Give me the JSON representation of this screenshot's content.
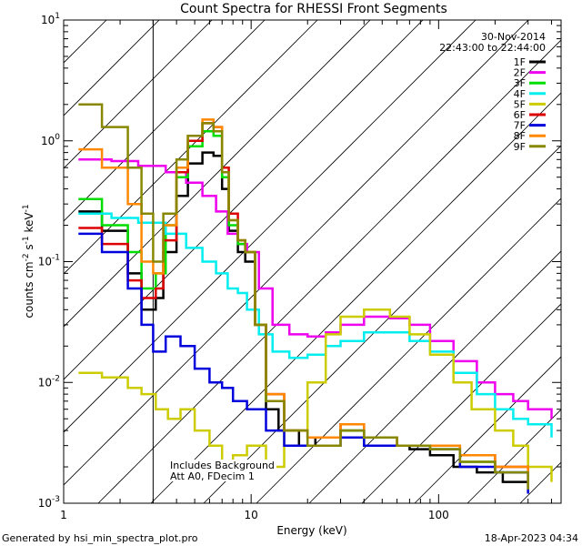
{
  "chart_data": {
    "type": "line",
    "title": "Count Spectra for RHESSI Front Segments",
    "xlabel": "Energy (keV)",
    "ylabel_parts": {
      "base": "counts cm",
      "e1": "-2",
      "mid": " s",
      "e2": "-1",
      "end": " keV",
      "e3": "-1"
    },
    "x_scale": "log",
    "y_scale": "log",
    "xlim": [
      1,
      450
    ],
    "ylim": [
      0.001,
      10
    ],
    "x_ticks": [
      {
        "v": 1,
        "label": "1"
      },
      {
        "v": 10,
        "label": "10"
      },
      {
        "v": 100,
        "label": "100"
      }
    ],
    "y_ticks": [
      {
        "v": 0.001,
        "base": "10",
        "exp": "-3"
      },
      {
        "v": 0.01,
        "base": "10",
        "exp": "-2"
      },
      {
        "v": 0.1,
        "base": "10",
        "exp": "-1"
      },
      {
        "v": 1,
        "base": "10",
        "exp": "0"
      },
      {
        "v": 10,
        "base": "10",
        "exp": "1"
      }
    ],
    "date": "30-Nov-2014",
    "time_range": "22:43:00 to 22:44:00",
    "excluded_below_keV": 3,
    "annotation_lines": [
      "Includes Background",
      "Att A0, FDecim 1"
    ],
    "legend_placement": "top-right",
    "series": [
      {
        "name": "1F",
        "color": "#000000",
        "points": [
          [
            1.2,
            0.26
          ],
          [
            1.6,
            0.18
          ],
          [
            2.2,
            0.08
          ],
          [
            2.6,
            0.04
          ],
          [
            3.1,
            0.05
          ],
          [
            3.4,
            0.12
          ],
          [
            4.0,
            0.35
          ],
          [
            4.6,
            0.65
          ],
          [
            5.5,
            0.8
          ],
          [
            6.3,
            0.75
          ],
          [
            7.0,
            0.4
          ],
          [
            7.6,
            0.18
          ],
          [
            8.5,
            0.12
          ],
          [
            9.3,
            0.1
          ],
          [
            10.5,
            0.03
          ],
          [
            12,
            0.006
          ],
          [
            14,
            0.004
          ],
          [
            18,
            0.003
          ],
          [
            22,
            0.0035
          ],
          [
            30,
            0.004
          ],
          [
            40,
            0.003
          ],
          [
            55,
            0.003
          ],
          [
            70,
            0.0028
          ],
          [
            90,
            0.0025
          ],
          [
            120,
            0.002
          ],
          [
            160,
            0.0018
          ],
          [
            220,
            0.0015
          ],
          [
            300,
            0.0012
          ]
        ]
      },
      {
        "name": "2F",
        "color": "#ee00ee",
        "points": [
          [
            1.2,
            0.7
          ],
          [
            1.8,
            0.68
          ],
          [
            2.5,
            0.62
          ],
          [
            3.5,
            0.55
          ],
          [
            4.5,
            0.45
          ],
          [
            5.5,
            0.35
          ],
          [
            6.5,
            0.26
          ],
          [
            7.5,
            0.17
          ],
          [
            8.5,
            0.14
          ],
          [
            9.5,
            0.12
          ],
          [
            11,
            0.06
          ],
          [
            13,
            0.03
          ],
          [
            16,
            0.025
          ],
          [
            20,
            0.024
          ],
          [
            25,
            0.026
          ],
          [
            30,
            0.03
          ],
          [
            40,
            0.035
          ],
          [
            55,
            0.034
          ],
          [
            70,
            0.03
          ],
          [
            90,
            0.022
          ],
          [
            120,
            0.015
          ],
          [
            160,
            0.01
          ],
          [
            200,
            0.008
          ],
          [
            250,
            0.007
          ],
          [
            300,
            0.006
          ],
          [
            400,
            0.005
          ]
        ]
      },
      {
        "name": "3F",
        "color": "#00dd00",
        "points": [
          [
            1.2,
            0.33
          ],
          [
            1.6,
            0.2
          ],
          [
            2.2,
            0.12
          ],
          [
            2.6,
            0.06
          ],
          [
            3.1,
            0.08
          ],
          [
            3.5,
            0.2
          ],
          [
            4.0,
            0.5
          ],
          [
            4.6,
            0.9
          ],
          [
            5.5,
            1.2
          ],
          [
            6.3,
            1.1
          ],
          [
            7.0,
            0.5
          ],
          [
            7.6,
            0.2
          ],
          [
            8.5,
            0.14
          ],
          [
            9.3,
            0.12
          ],
          [
            10.5,
            0.03
          ],
          [
            12,
            0.007
          ],
          [
            15,
            0.004
          ],
          [
            20,
            0.0035
          ],
          [
            30,
            0.004
          ],
          [
            40,
            0.003
          ],
          [
            60,
            0.003
          ],
          [
            90,
            0.0028
          ],
          [
            130,
            0.0022
          ],
          [
            200,
            0.0018
          ],
          [
            300,
            0.0013
          ]
        ]
      },
      {
        "name": "4F",
        "color": "#00eeee",
        "points": [
          [
            1.2,
            0.25
          ],
          [
            1.8,
            0.23
          ],
          [
            2.5,
            0.21
          ],
          [
            3.5,
            0.17
          ],
          [
            4.5,
            0.13
          ],
          [
            5.5,
            0.1
          ],
          [
            6.5,
            0.08
          ],
          [
            7.5,
            0.06
          ],
          [
            8.5,
            0.055
          ],
          [
            9.5,
            0.04
          ],
          [
            11,
            0.025
          ],
          [
            13,
            0.018
          ],
          [
            16,
            0.016
          ],
          [
            20,
            0.017
          ],
          [
            25,
            0.02
          ],
          [
            30,
            0.022
          ],
          [
            40,
            0.026
          ],
          [
            55,
            0.026
          ],
          [
            70,
            0.022
          ],
          [
            90,
            0.018
          ],
          [
            120,
            0.012
          ],
          [
            160,
            0.008
          ],
          [
            200,
            0.006
          ],
          [
            250,
            0.005
          ],
          [
            300,
            0.0045
          ],
          [
            400,
            0.0035
          ]
        ]
      },
      {
        "name": "5F",
        "color": "#cccc00",
        "points": [
          [
            1.2,
            0.012
          ],
          [
            1.6,
            0.011
          ],
          [
            2.2,
            0.009
          ],
          [
            2.6,
            0.008
          ],
          [
            3.1,
            0.006
          ],
          [
            3.6,
            0.005
          ],
          [
            4.2,
            0.006
          ],
          [
            5,
            0.004
          ],
          [
            6,
            0.003
          ],
          [
            7,
            0.002
          ],
          [
            8,
            0.0025
          ],
          [
            9.5,
            0.003
          ],
          [
            12,
            0.002
          ],
          [
            15,
            0.004
          ],
          [
            20,
            0.01
          ],
          [
            25,
            0.025
          ],
          [
            30,
            0.035
          ],
          [
            40,
            0.04
          ],
          [
            55,
            0.035
          ],
          [
            70,
            0.025
          ],
          [
            90,
            0.017
          ],
          [
            120,
            0.01
          ],
          [
            150,
            0.006
          ],
          [
            200,
            0.004
          ],
          [
            250,
            0.003
          ],
          [
            300,
            0.002
          ],
          [
            400,
            0.0015
          ]
        ]
      },
      {
        "name": "6F",
        "color": "#dd0000",
        "points": [
          [
            1.2,
            0.19
          ],
          [
            1.6,
            0.14
          ],
          [
            2.2,
            0.07
          ],
          [
            2.6,
            0.05
          ],
          [
            3.1,
            0.06
          ],
          [
            3.4,
            0.15
          ],
          [
            4.0,
            0.55
          ],
          [
            4.6,
            1.0
          ],
          [
            5.5,
            1.4
          ],
          [
            6.3,
            1.3
          ],
          [
            7.0,
            0.6
          ],
          [
            7.6,
            0.25
          ],
          [
            8.5,
            0.15
          ],
          [
            9.3,
            0.12
          ],
          [
            10.5,
            0.03
          ],
          [
            12,
            0.008
          ],
          [
            15,
            0.004
          ],
          [
            20,
            0.0035
          ],
          [
            30,
            0.0045
          ],
          [
            40,
            0.0035
          ],
          [
            60,
            0.003
          ],
          [
            90,
            0.003
          ],
          [
            130,
            0.0025
          ],
          [
            200,
            0.002
          ],
          [
            300,
            0.0014
          ]
        ]
      },
      {
        "name": "7F",
        "color": "#0000dd",
        "points": [
          [
            1.2,
            0.17
          ],
          [
            1.6,
            0.12
          ],
          [
            2.2,
            0.06
          ],
          [
            2.6,
            0.03
          ],
          [
            3.0,
            0.018
          ],
          [
            3.5,
            0.024
          ],
          [
            4.2,
            0.02
          ],
          [
            5,
            0.013
          ],
          [
            6,
            0.01
          ],
          [
            7,
            0.009
          ],
          [
            8,
            0.007
          ],
          [
            9.5,
            0.006
          ],
          [
            12,
            0.004
          ],
          [
            15,
            0.003
          ],
          [
            20,
            0.003
          ],
          [
            30,
            0.0035
          ],
          [
            40,
            0.003
          ],
          [
            60,
            0.003
          ],
          [
            90,
            0.0028
          ],
          [
            130,
            0.002
          ],
          [
            200,
            0.0018
          ],
          [
            300,
            0.0012
          ]
        ]
      },
      {
        "name": "8F",
        "color": "#ff8800",
        "points": [
          [
            1.2,
            0.85
          ],
          [
            1.6,
            0.6
          ],
          [
            2.2,
            0.3
          ],
          [
            2.6,
            0.1
          ],
          [
            3.0,
            0.08
          ],
          [
            3.4,
            0.2
          ],
          [
            4.0,
            0.6
          ],
          [
            4.6,
            1.1
          ],
          [
            5.5,
            1.5
          ],
          [
            6.3,
            1.3
          ],
          [
            7.0,
            0.55
          ],
          [
            7.6,
            0.22
          ],
          [
            8.5,
            0.15
          ],
          [
            9.3,
            0.12
          ],
          [
            10.5,
            0.03
          ],
          [
            12,
            0.008
          ],
          [
            15,
            0.004
          ],
          [
            20,
            0.0035
          ],
          [
            30,
            0.0045
          ],
          [
            40,
            0.0035
          ],
          [
            60,
            0.003
          ],
          [
            90,
            0.003
          ],
          [
            130,
            0.0025
          ],
          [
            200,
            0.002
          ],
          [
            300,
            0.0014
          ]
        ]
      },
      {
        "name": "9F",
        "color": "#888800",
        "points": [
          [
            1.2,
            2.0
          ],
          [
            1.6,
            1.3
          ],
          [
            2.2,
            0.6
          ],
          [
            2.6,
            0.25
          ],
          [
            3.0,
            0.1
          ],
          [
            3.4,
            0.25
          ],
          [
            4.0,
            0.7
          ],
          [
            4.6,
            1.1
          ],
          [
            5.5,
            1.4
          ],
          [
            6.3,
            1.2
          ],
          [
            7.0,
            0.55
          ],
          [
            7.6,
            0.22
          ],
          [
            8.5,
            0.15
          ],
          [
            9.3,
            0.12
          ],
          [
            10.5,
            0.03
          ],
          [
            12,
            0.007
          ],
          [
            15,
            0.004
          ],
          [
            20,
            0.003
          ],
          [
            30,
            0.004
          ],
          [
            40,
            0.0035
          ],
          [
            60,
            0.003
          ],
          [
            90,
            0.0028
          ],
          [
            130,
            0.0022
          ],
          [
            200,
            0.0018
          ],
          [
            300,
            0.0013
          ]
        ]
      }
    ]
  },
  "footer": {
    "generated_by": "Generated by hsi_min_spectra_plot.pro",
    "timestamp": "18-Apr-2023 04:34"
  }
}
